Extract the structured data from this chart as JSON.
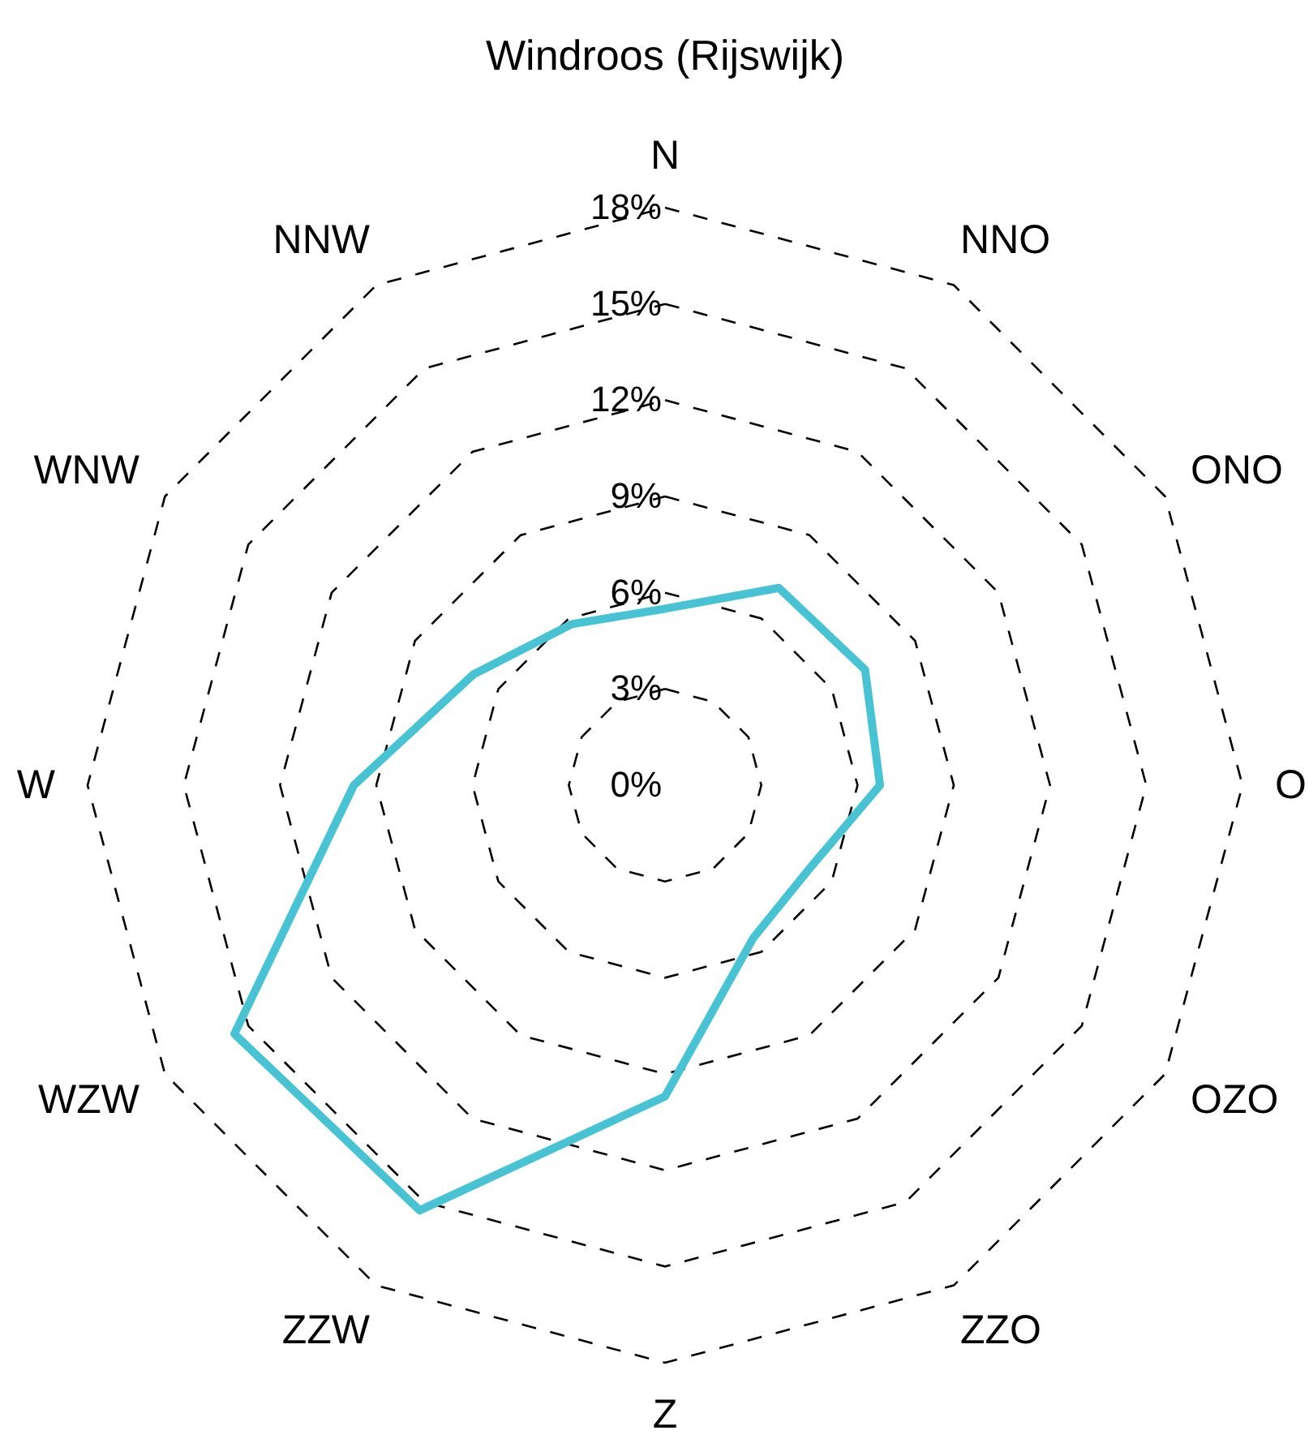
{
  "chart_data": {
    "type": "radar",
    "title": "Windroos (Rijswijk)",
    "categories": [
      "N",
      "NNO",
      "ONO",
      "O",
      "OZO",
      "ZZO",
      "Z",
      "ZZW",
      "WZW",
      "W",
      "WNW",
      "NNW"
    ],
    "series": [
      {
        "color": "#48c3d3",
        "values": [
          5.5,
          7.1,
          7.2,
          6.7,
          5.2,
          5.5,
          9.7,
          15.3,
          15.5,
          9.7,
          6.9,
          5.8
        ]
      }
    ],
    "ylim": [
      0,
      18
    ],
    "yticks": [
      {
        "value": 0,
        "label": "0%"
      },
      {
        "value": 3,
        "label": "3%"
      },
      {
        "value": 6,
        "label": "6%"
      },
      {
        "value": 9,
        "label": "9%"
      },
      {
        "value": 12,
        "label": "12%"
      },
      {
        "value": 15,
        "label": "15%"
      },
      {
        "value": 18,
        "label": "18%"
      }
    ],
    "grid": true
  }
}
